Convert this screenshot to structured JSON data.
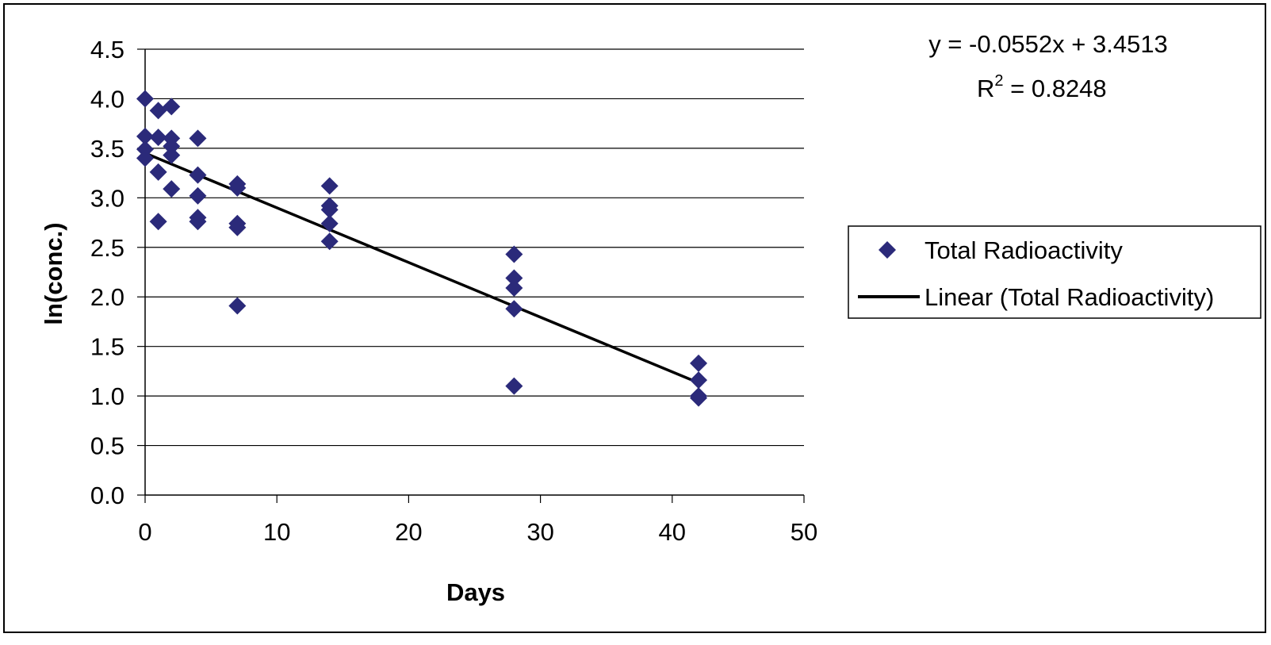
{
  "chart_data": {
    "type": "scatter",
    "xlabel": "Days",
    "ylabel": "ln(conc.)",
    "xlim": [
      0,
      50
    ],
    "ylim": [
      0,
      4.5
    ],
    "x_ticks": [
      "0",
      "10",
      "20",
      "30",
      "40",
      "50"
    ],
    "y_ticks": [
      "0.0",
      "0.5",
      "1.0",
      "1.5",
      "2.0",
      "2.5",
      "3.0",
      "3.5",
      "4.0",
      "4.5"
    ],
    "grid": "horizontal",
    "legend_position": "right",
    "colors": {
      "marker": "#2b2a7a",
      "trendline": "#000000"
    },
    "series": [
      {
        "name": "Total Radioactivity",
        "points": [
          [
            0,
            4.0
          ],
          [
            0,
            3.62
          ],
          [
            0,
            3.49
          ],
          [
            0,
            3.4
          ],
          [
            1,
            3.88
          ],
          [
            1,
            3.61
          ],
          [
            1,
            3.26
          ],
          [
            1,
            2.76
          ],
          [
            2,
            3.92
          ],
          [
            2,
            3.6
          ],
          [
            2,
            3.52
          ],
          [
            2,
            3.43
          ],
          [
            2,
            3.09
          ],
          [
            4,
            3.6
          ],
          [
            4,
            3.23
          ],
          [
            4,
            3.02
          ],
          [
            4,
            2.8
          ],
          [
            4,
            2.76
          ],
          [
            7,
            3.14
          ],
          [
            7,
            3.1
          ],
          [
            7,
            2.74
          ],
          [
            7,
            2.7
          ],
          [
            7,
            1.91
          ],
          [
            14,
            3.12
          ],
          [
            14,
            2.92
          ],
          [
            14,
            2.88
          ],
          [
            14,
            2.74
          ],
          [
            14,
            2.56
          ],
          [
            28,
            2.43
          ],
          [
            28,
            2.19
          ],
          [
            28,
            2.09
          ],
          [
            28,
            1.88
          ],
          [
            28,
            1.1
          ],
          [
            42,
            1.33
          ],
          [
            42,
            1.16
          ],
          [
            42,
            1.0
          ],
          [
            42,
            0.98
          ]
        ]
      }
    ],
    "trendline": {
      "name": "Linear (Total Radioactivity)",
      "slope": -0.0552,
      "intercept": 3.4513,
      "x_range": [
        0,
        42
      ],
      "equation": "y = -0.0552x + 3.4513",
      "r2_prefix": "R",
      "r2_exponent": "2",
      "r2_suffix": " = 0.8248"
    }
  }
}
